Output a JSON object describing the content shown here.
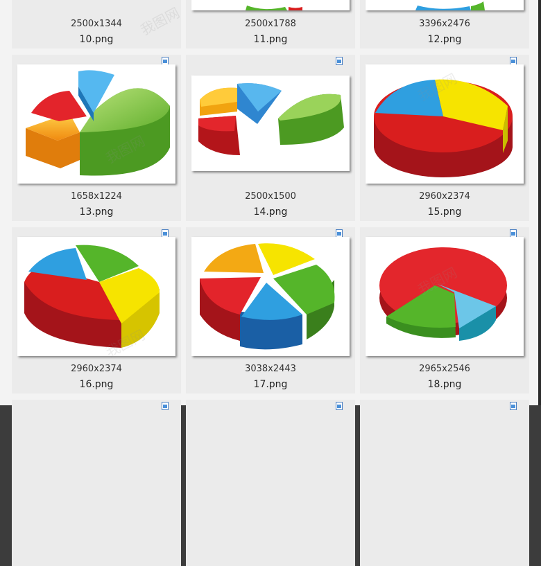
{
  "colors": {
    "red": "#d91e1e",
    "green": "#55b52a",
    "blue": "#2f9fe0",
    "yellow": "#f6e400",
    "orange": "#f39c12"
  },
  "top_row": [
    {
      "dims": "2500x1344",
      "name": "10.png"
    },
    {
      "dims": "2500x1788",
      "name": "11.png"
    },
    {
      "dims": "3396x2476",
      "name": "12.png"
    }
  ],
  "tiles": [
    {
      "dims": "1658x1224",
      "name": "13.png",
      "icon": "image-file-icon"
    },
    {
      "dims": "2500x1500",
      "name": "14.png",
      "icon": "image-file-icon"
    },
    {
      "dims": "2960x2374",
      "name": "15.png",
      "icon": "image-file-icon"
    },
    {
      "dims": "2960x2374",
      "name": "16.png",
      "icon": "image-file-icon"
    },
    {
      "dims": "3038x2443",
      "name": "17.png",
      "icon": "image-file-icon"
    },
    {
      "dims": "2965x2546",
      "name": "18.png",
      "icon": "image-file-icon"
    }
  ],
  "watermark": "我图网"
}
